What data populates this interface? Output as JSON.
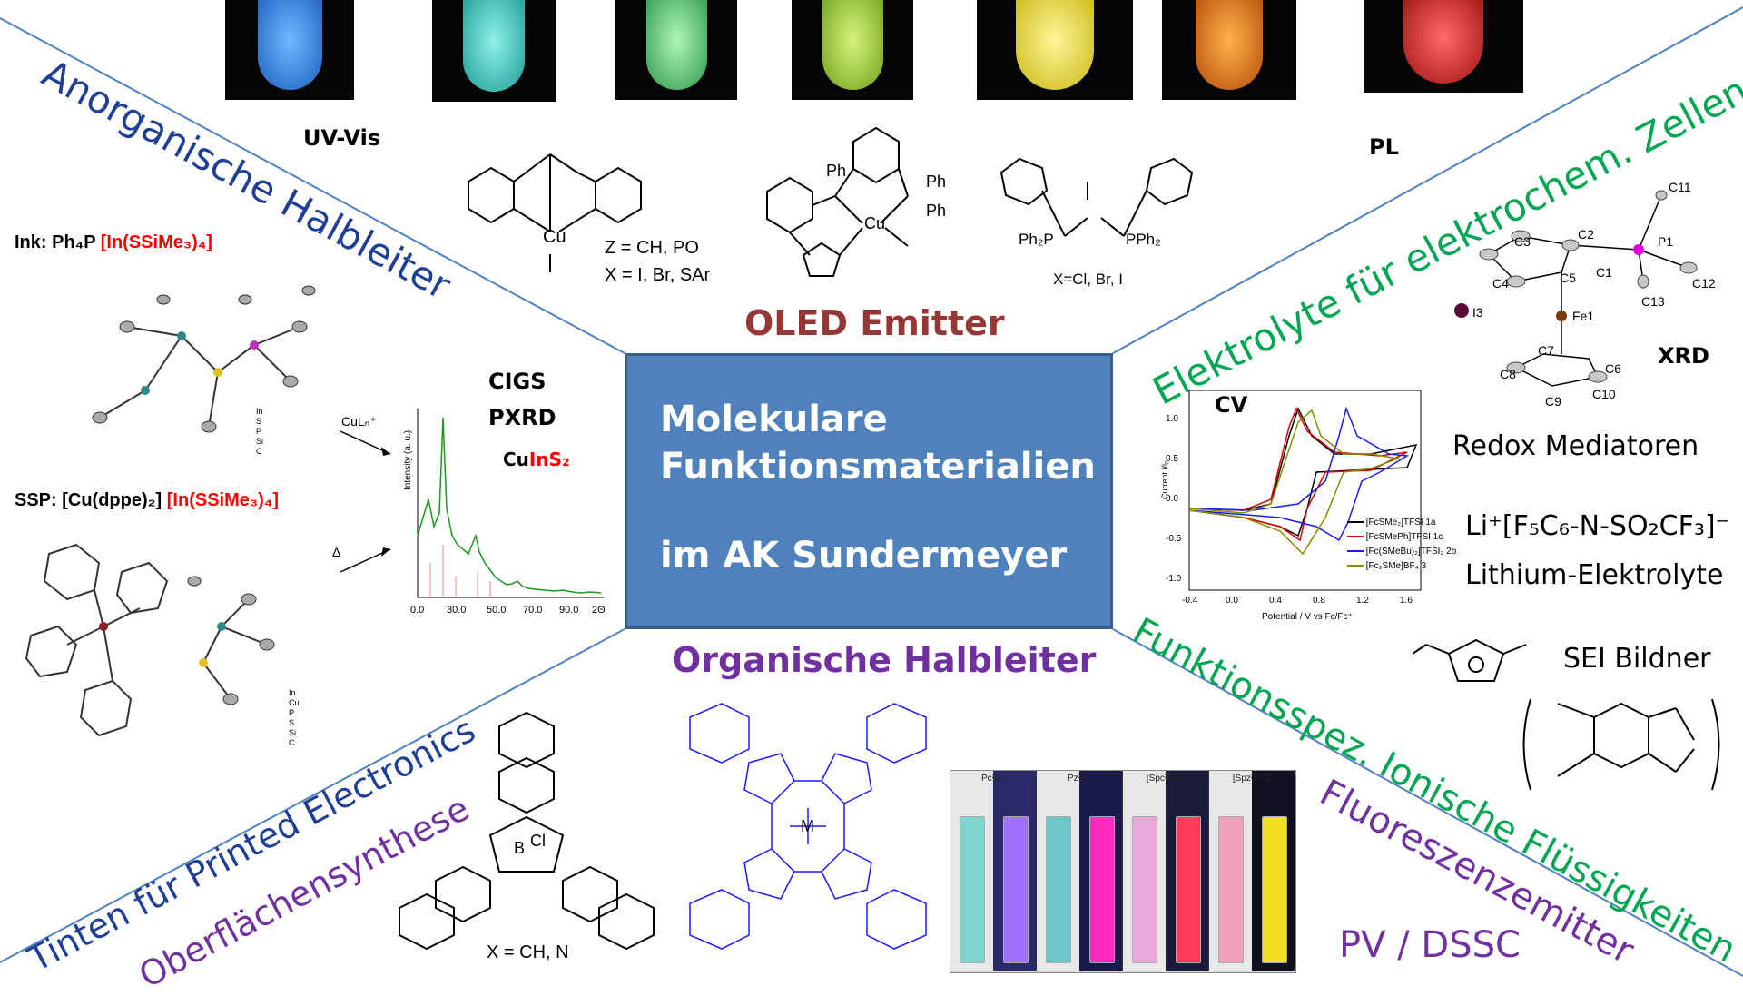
{
  "center": {
    "line1": "Molekulare",
    "line2": "Funktionsmaterialien",
    "line3": "im AK Sundermeyer"
  },
  "topics": {
    "inorganic": "Anorganische Halbleiter",
    "electrolytes": "Elektrolyte für elektrochem. Zellen",
    "inks": "Tinten für Printed Electronics",
    "surface": "Oberflächensynthese",
    "ionic": "Funktionsspez. Ionische Flüssigkeiten",
    "fluor": "Fluoreszenzemitter",
    "oled": "OLED  Emitter",
    "organic": "Organische Halbleiter",
    "pv": "PV / DSSC"
  },
  "labels": {
    "uvvis": "UV-Vis",
    "pl": "PL",
    "xrd": "XRD",
    "cigs": "CIGS",
    "pxrd": "PXRD",
    "cv": "CV",
    "redox": "Redox Mediatoren",
    "li_salt": "Li⁺[F₅C₆-N-SO₂CF₃]⁻",
    "li_electrolyte": "Lithium-Elektrolyte",
    "sei": "SEI Bildner",
    "cuins2_a": "Cu",
    "cuins2_b": "InS₂",
    "ink_a": "Ink: Ph₄P ",
    "ink_b": "[In(SSiMe₃)₄]",
    "ssp_a": "SSP: [Cu(dppe)₂] ",
    "ssp_b": "[In(SSiMe₃)₄]",
    "culn": "CuLₙ⁺",
    "delta": "Δ",
    "z_def": "Z = CH, PO",
    "x_def": "X = I, Br, SAr",
    "x_def2": "X=Cl, Br, I",
    "x_def3": "X = CH, N",
    "ph": "Ph",
    "ph2p": "Ph₂P",
    "pph2": "PPh₂",
    "cu": "Cu",
    "m": "M",
    "bcl": "B",
    "cl": "Cl"
  },
  "chart_pxrd": {
    "ylabel": "Intensity (a. u.)",
    "xticks": [
      "0.0",
      "30.0",
      "50.0",
      "70.0",
      "90.0",
      "2Θ"
    ]
  },
  "chart_cv": {
    "ylabel": "Current i/iₚ",
    "xlabel": "Potential / V vs Fc/Fc⁺",
    "yticks": [
      "1.0",
      "0.5",
      "0.0",
      "-0.5",
      "-1.0"
    ],
    "xticks": [
      "-0.4",
      "0.0",
      "0.4",
      "0.8",
      "1.2",
      "1.6"
    ],
    "legend": [
      "[FcSMe₂]TFSI 1a",
      "[FcSMePh]TFSI 1c",
      "[Fc(SMeBu)₂]TFSI₂ 2b",
      "[Fc₂SMe]BF₄ 3"
    ],
    "legend_colors": [
      "#000000",
      "#e00000",
      "#1a1aff",
      "#8b8b00"
    ]
  },
  "xrd_atoms": [
    "C11",
    "C2",
    "C3",
    "P1",
    "C12",
    "C4",
    "C5",
    "C1",
    "C13",
    "I3",
    "Fe1",
    "C7",
    "C8",
    "C6",
    "C9",
    "C10"
  ],
  "vials": [
    "Pc²H₂",
    "Pz²H₂",
    "[Spc²BCl]",
    "[Spz²BCl]"
  ],
  "legend_ink": [
    "In",
    "S",
    "P",
    "Si",
    "C"
  ],
  "legend_ssp": [
    "In",
    "Cu",
    "P",
    "S",
    "Si",
    "C"
  ],
  "colors": {
    "box": "#4f81bd",
    "inorganic": "#1f3f96",
    "green": "#00a651",
    "purple": "#7030a0",
    "oled": "#953735",
    "red": "#ff0000"
  },
  "photo_colors": [
    "#2f8be0",
    "#3ec7c0",
    "#5fd67a",
    "#9bd330",
    "#e6e020",
    "#e07010",
    "#d82020"
  ]
}
